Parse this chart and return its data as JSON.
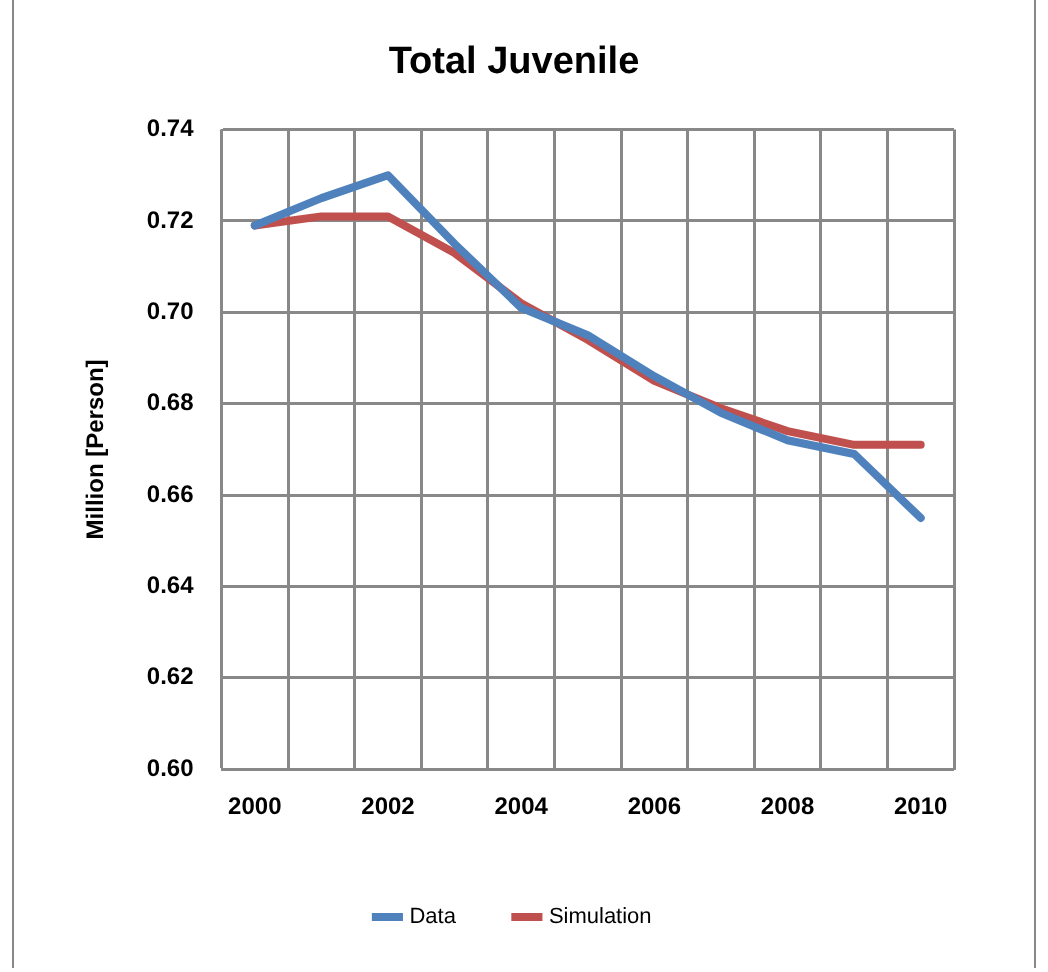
{
  "chart_data": {
    "type": "line",
    "title": "Total Juvenile",
    "ylabel": "Million [Person]",
    "categories": [
      "2000",
      null,
      "2002",
      null,
      "2004",
      null,
      "2006",
      null,
      "2008",
      null,
      "2010"
    ],
    "series": [
      {
        "name": "Data",
        "color": "#4f81bd",
        "values": [
          0.719,
          0.725,
          0.73,
          0.715,
          0.701,
          0.695,
          0.686,
          0.678,
          0.672,
          0.669,
          0.655
        ]
      },
      {
        "name": "Simulation",
        "color": "#c0504d",
        "values": [
          0.719,
          0.721,
          0.721,
          0.713,
          0.702,
          0.694,
          0.685,
          0.679,
          0.674,
          0.671,
          0.671
        ]
      }
    ],
    "ylim": [
      0.6,
      0.74
    ],
    "yticks": [
      {
        "value": 0.6,
        "label": "0.60"
      },
      {
        "value": 0.62,
        "label": "0.62"
      },
      {
        "value": 0.64,
        "label": "0.64"
      },
      {
        "value": 0.66,
        "label": "0.66"
      },
      {
        "value": 0.68,
        "label": "0.68"
      },
      {
        "value": 0.7,
        "label": "0.70"
      },
      {
        "value": 0.72,
        "label": "0.72"
      },
      {
        "value": 0.74,
        "label": "0.74"
      }
    ],
    "grid": true,
    "legend": "bottom",
    "marker": "none",
    "line_style": "solid"
  }
}
